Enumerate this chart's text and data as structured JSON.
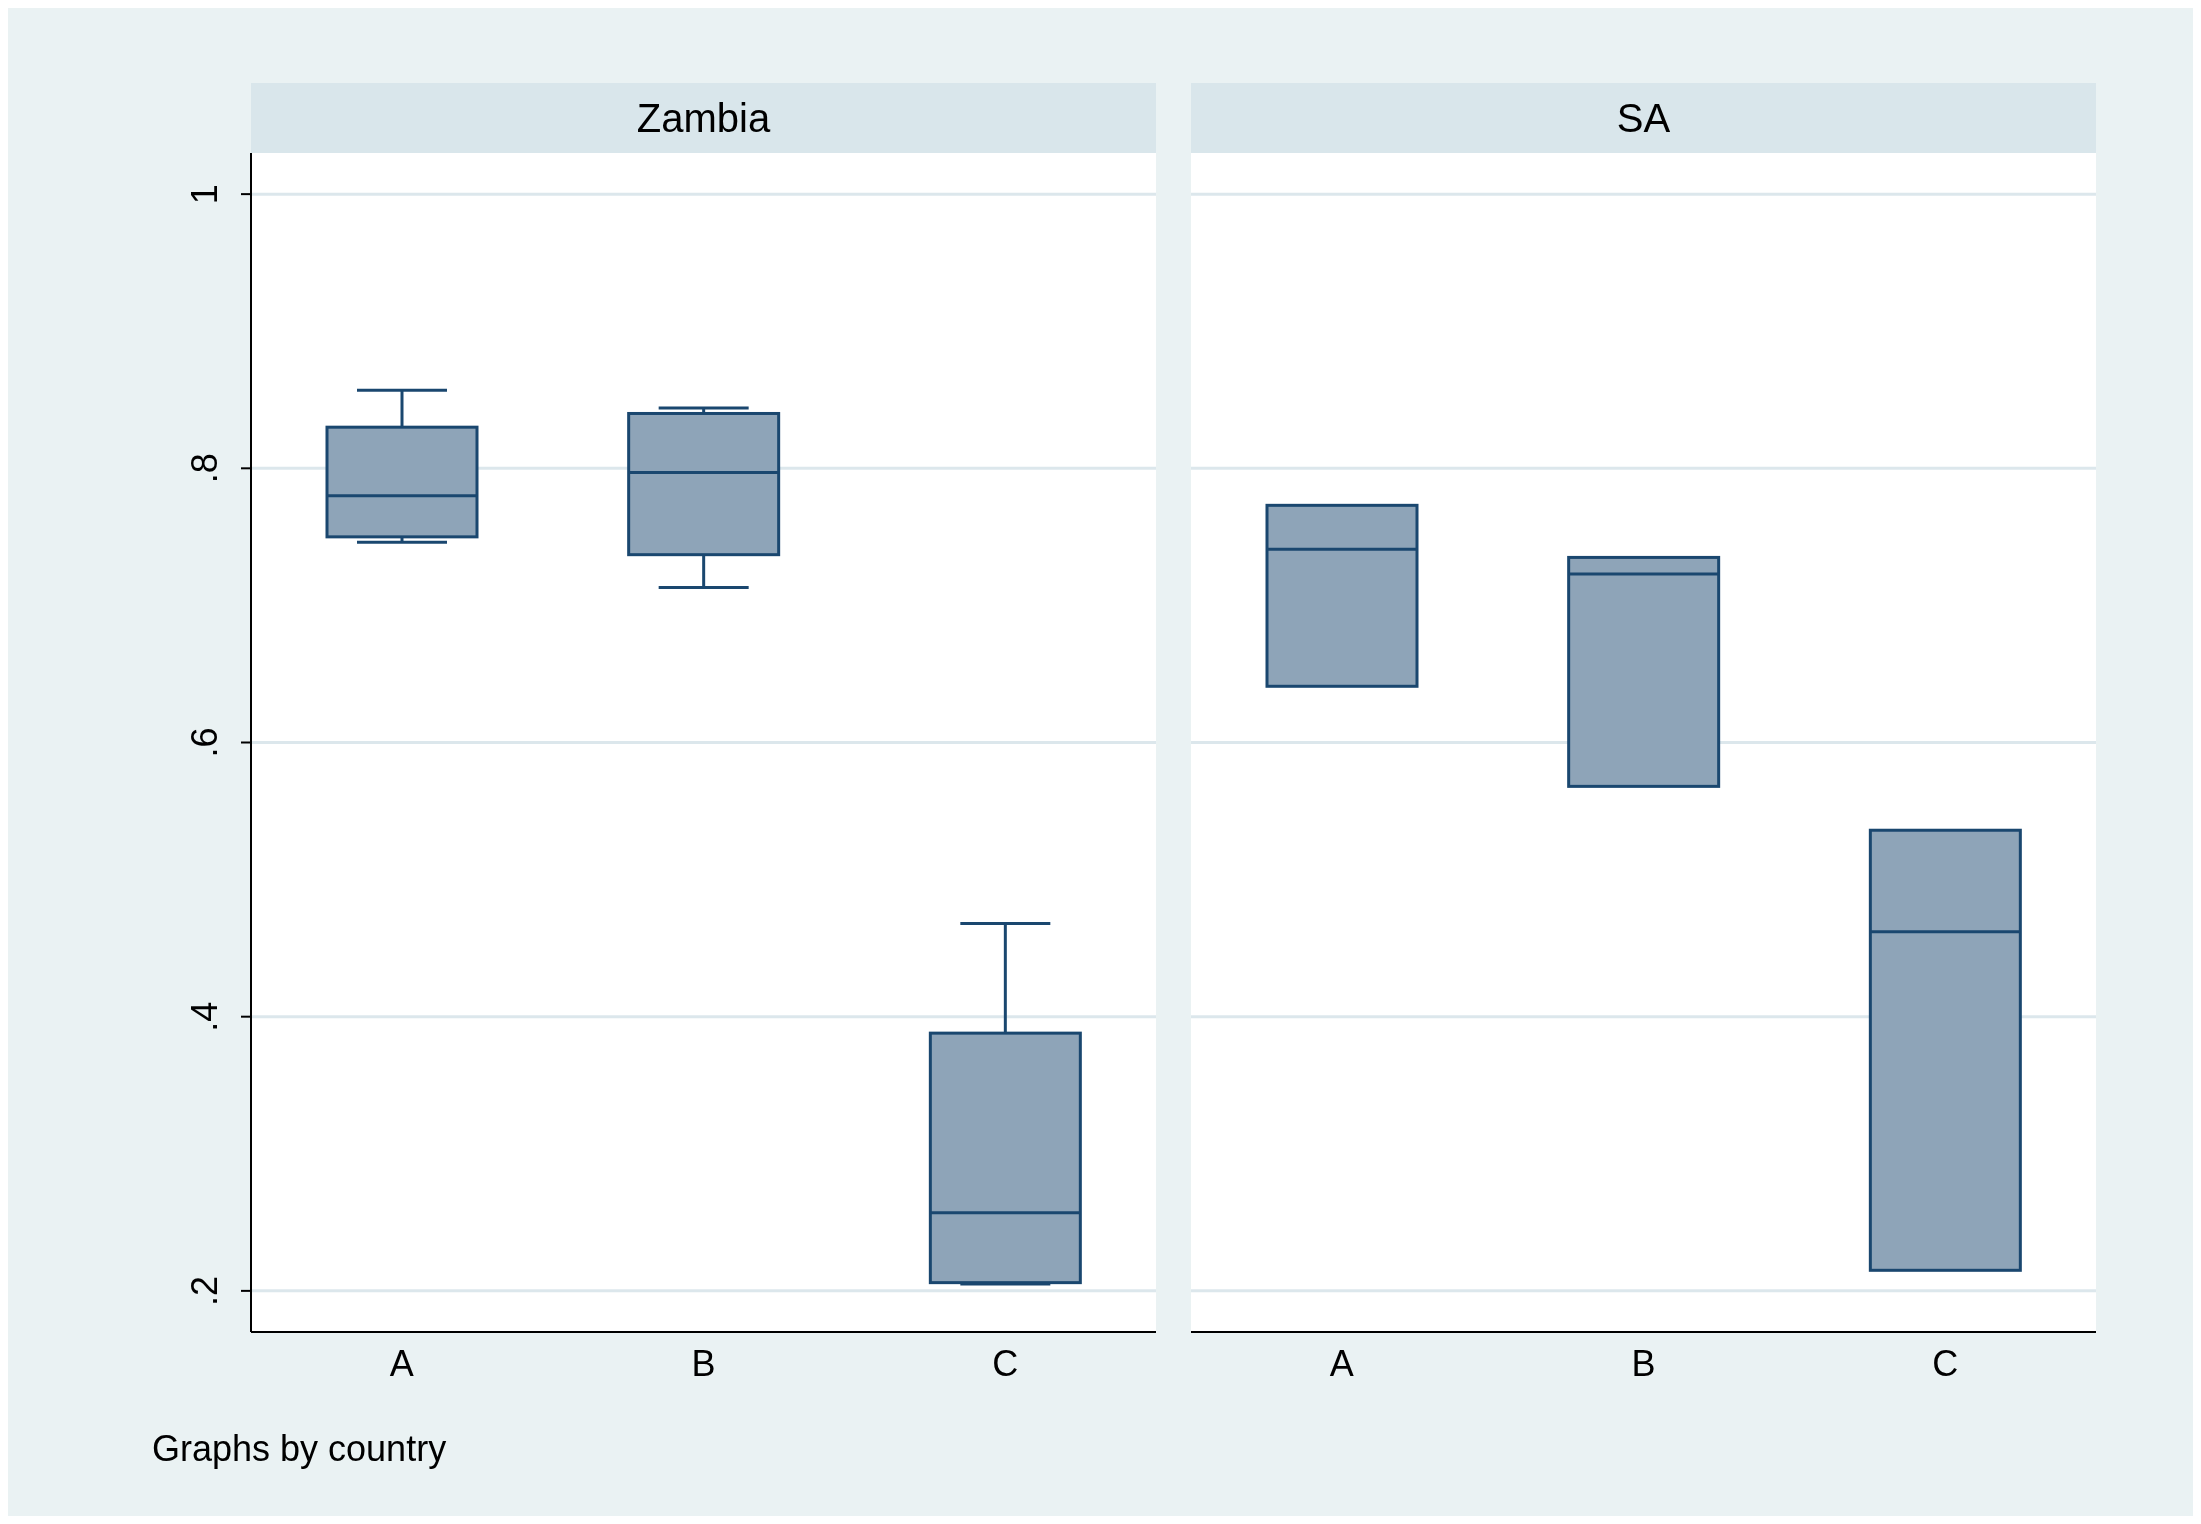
{
  "chart_data": [
    {
      "type": "box",
      "title": "Zambia",
      "categories": [
        "A",
        "B",
        "C"
      ],
      "color": "#8ea4b8",
      "ylim": [
        0.17,
        1.03
      ],
      "yticks": [
        {
          "value": 0.2,
          "label": ".2"
        },
        {
          "value": 0.4,
          "label": ".4"
        },
        {
          "value": 0.6,
          "label": ".6"
        },
        {
          "value": 0.8,
          "label": ".8"
        },
        {
          "value": 1,
          "label": "1"
        }
      ],
      "grid": "y",
      "annotations": [
        "Graphs by country"
      ],
      "boxes": [
        {
          "low": 0.746,
          "q1": 0.75,
          "median": 0.78,
          "q3": 0.83,
          "high": 0.857
        },
        {
          "low": 0.713,
          "q1": 0.737,
          "median": 0.797,
          "q3": 0.84,
          "high": 0.844
        },
        {
          "low": 0.205,
          "q1": 0.206,
          "median": 0.257,
          "q3": 0.388,
          "high": 0.468
        }
      ]
    },
    {
      "type": "box",
      "title": "SA",
      "categories": [
        "A",
        "B",
        "C"
      ],
      "color": "#8ea4b8",
      "ylim": [
        0.17,
        1.03
      ],
      "yticks": [
        0.2,
        0.4,
        0.6,
        0.8,
        1
      ],
      "grid": "y",
      "tick_labels": "x",
      "boxes": [
        {
          "low": 0.641,
          "q1": 0.641,
          "median": 0.741,
          "q3": 0.773,
          "high": 0.773
        },
        {
          "low": 0.568,
          "q1": 0.568,
          "median": 0.723,
          "q3": 0.735,
          "high": 0.735
        },
        {
          "low": 0.215,
          "q1": 0.215,
          "median": 0.462,
          "q3": 0.536,
          "high": 0.536
        }
      ]
    }
  ]
}
